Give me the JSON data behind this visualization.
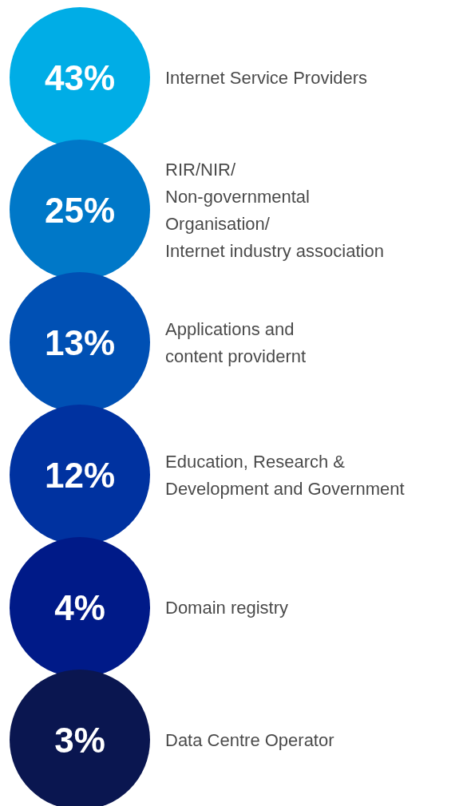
{
  "chart_data": {
    "type": "other",
    "categories": [
      "Internet Service Providers",
      "RIR/NIR/\nNon-governmental\nOrganisation/\nInternet industry association",
      "Applications and\ncontent providernt",
      "Education, Research &\nDevelopment and Government",
      "Domain registry",
      "Data Centre Operator"
    ],
    "values": [
      43,
      25,
      13,
      12,
      4,
      3
    ],
    "value_labels": [
      "43%",
      "25%",
      "13%",
      "12%",
      "4%",
      "3%"
    ],
    "colors": [
      "#00ade6",
      "#0078c8",
      "#0050b4",
      "#0032a0",
      "#001a88",
      "#0a1650"
    ]
  }
}
